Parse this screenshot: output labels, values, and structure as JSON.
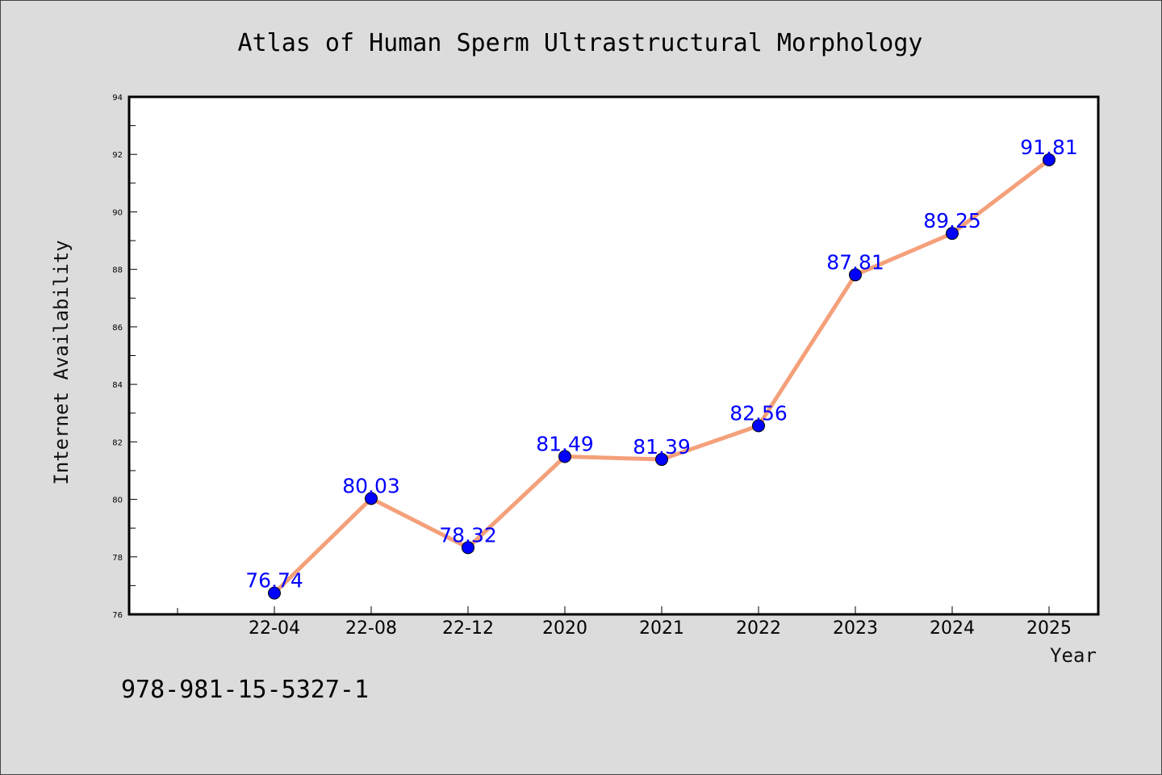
{
  "chart_data": {
    "type": "line",
    "title": "Atlas of Human Sperm Ultrastructural Morphology",
    "xlabel": "Year",
    "ylabel": "Internet Availability",
    "categories": [
      "22-04",
      "22-08",
      "22-12",
      "2020",
      "2021",
      "2022",
      "2023",
      "2024",
      "2025"
    ],
    "series": [
      {
        "values": [
          76.74,
          80.03,
          78.32,
          81.49,
          81.39,
          82.56,
          87.81,
          89.25,
          91.81
        ]
      }
    ],
    "data_labels": [
      "76.74",
      "80.03",
      "78.32",
      "81.49",
      "81.39",
      "82.56",
      "87.81",
      "89.25",
      "91.81"
    ],
    "ylim": [
      76,
      94
    ],
    "yticks": [
      76,
      78,
      80,
      82,
      84,
      86,
      88,
      90,
      92,
      94
    ],
    "line_color": "#f4a07a",
    "marker_color": "#0000ff",
    "label_color": "#0000ff",
    "background_color": "#dcdcdc",
    "plot_background_color": "#ffffff",
    "grid": false,
    "legend": "none"
  },
  "footnote": "978-981-15-5327-1"
}
